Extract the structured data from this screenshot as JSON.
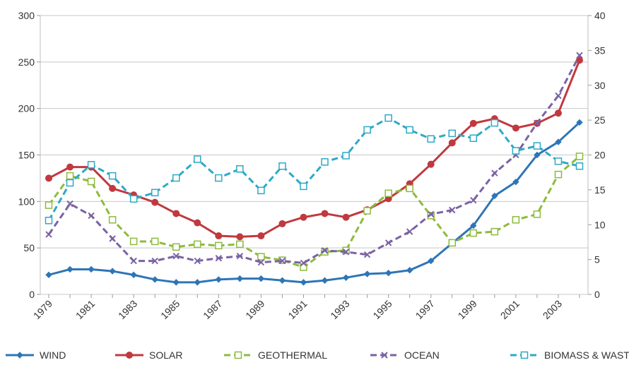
{
  "chart_data": {
    "type": "line",
    "title": "",
    "xlabel": "",
    "ylabel": "",
    "x": [
      1979,
      1980,
      1981,
      1982,
      1983,
      1984,
      1985,
      1986,
      1987,
      1988,
      1989,
      1990,
      1991,
      1992,
      1993,
      1994,
      1995,
      1996,
      1997,
      1998,
      1999,
      2000,
      2001,
      2002,
      2003,
      2004
    ],
    "x_tick_labels": [
      "1979",
      "1981",
      "1983",
      "1985",
      "1987",
      "1989",
      "1991",
      "1993",
      "1995",
      "1997",
      "1999",
      "2001",
      "2003"
    ],
    "ylim": [
      0,
      300
    ],
    "y_ticks": [
      0,
      50,
      100,
      150,
      200,
      250,
      300
    ],
    "y2lim": [
      0,
      40
    ],
    "y2_ticks": [
      0,
      5,
      10,
      15,
      20,
      25,
      30,
      35,
      40
    ],
    "grid": true,
    "legend_position": "bottom",
    "series": [
      {
        "name": "WIND",
        "axis": "left",
        "color": "#2e75b6",
        "dash": "solid",
        "marker": "diamond",
        "values": [
          21,
          27,
          27,
          25,
          21,
          16,
          13,
          13,
          16,
          17,
          17,
          15,
          13,
          15,
          18,
          22,
          23,
          26,
          36,
          55,
          74,
          106,
          121,
          150,
          164,
          185
        ]
      },
      {
        "name": "SOLAR",
        "axis": "left",
        "color": "#c0393f",
        "dash": "solid",
        "marker": "circle",
        "values": [
          125,
          137,
          137,
          114,
          107,
          99,
          87,
          77,
          63,
          62,
          63,
          76,
          83,
          87,
          83,
          91,
          103,
          119,
          140,
          163,
          184,
          189,
          179,
          184,
          195,
          252
        ]
      },
      {
        "name": "GEOTHERMAL",
        "axis": "right",
        "color": "#8dbb3c",
        "dash": "dash",
        "marker": "square-open",
        "values": [
          12.8,
          17.0,
          16.2,
          10.7,
          7.6,
          7.6,
          6.8,
          7.2,
          7.0,
          7.2,
          5.4,
          4.9,
          3.9,
          6.1,
          6.3,
          12.0,
          14.5,
          15.2,
          11.3,
          7.4,
          8.8,
          9.0,
          10.7,
          11.5,
          17.2,
          19.8
        ]
      },
      {
        "name": "OCEAN",
        "axis": "right",
        "color": "#7b62a3",
        "dash": "dash",
        "marker": "x",
        "values": [
          8.6,
          13.0,
          11.3,
          8.0,
          4.8,
          4.8,
          5.5,
          4.8,
          5.2,
          5.5,
          4.6,
          4.8,
          4.5,
          6.3,
          6.1,
          5.7,
          7.4,
          9.0,
          11.5,
          12.1,
          13.5,
          17.4,
          20.0,
          24.6,
          28.5,
          34.3
        ]
      },
      {
        "name": "BIOMASS & WASTE",
        "axis": "right",
        "color": "#2ea9c6",
        "dash": "dash",
        "marker": "square-open",
        "values": [
          10.6,
          16.0,
          18.6,
          17.0,
          13.7,
          14.6,
          16.7,
          19.4,
          16.7,
          18.0,
          14.9,
          18.4,
          15.5,
          19.0,
          19.9,
          23.6,
          25.3,
          23.6,
          22.3,
          23.1,
          22.4,
          24.6,
          20.6,
          21.3,
          19.1,
          18.4
        ]
      }
    ]
  }
}
